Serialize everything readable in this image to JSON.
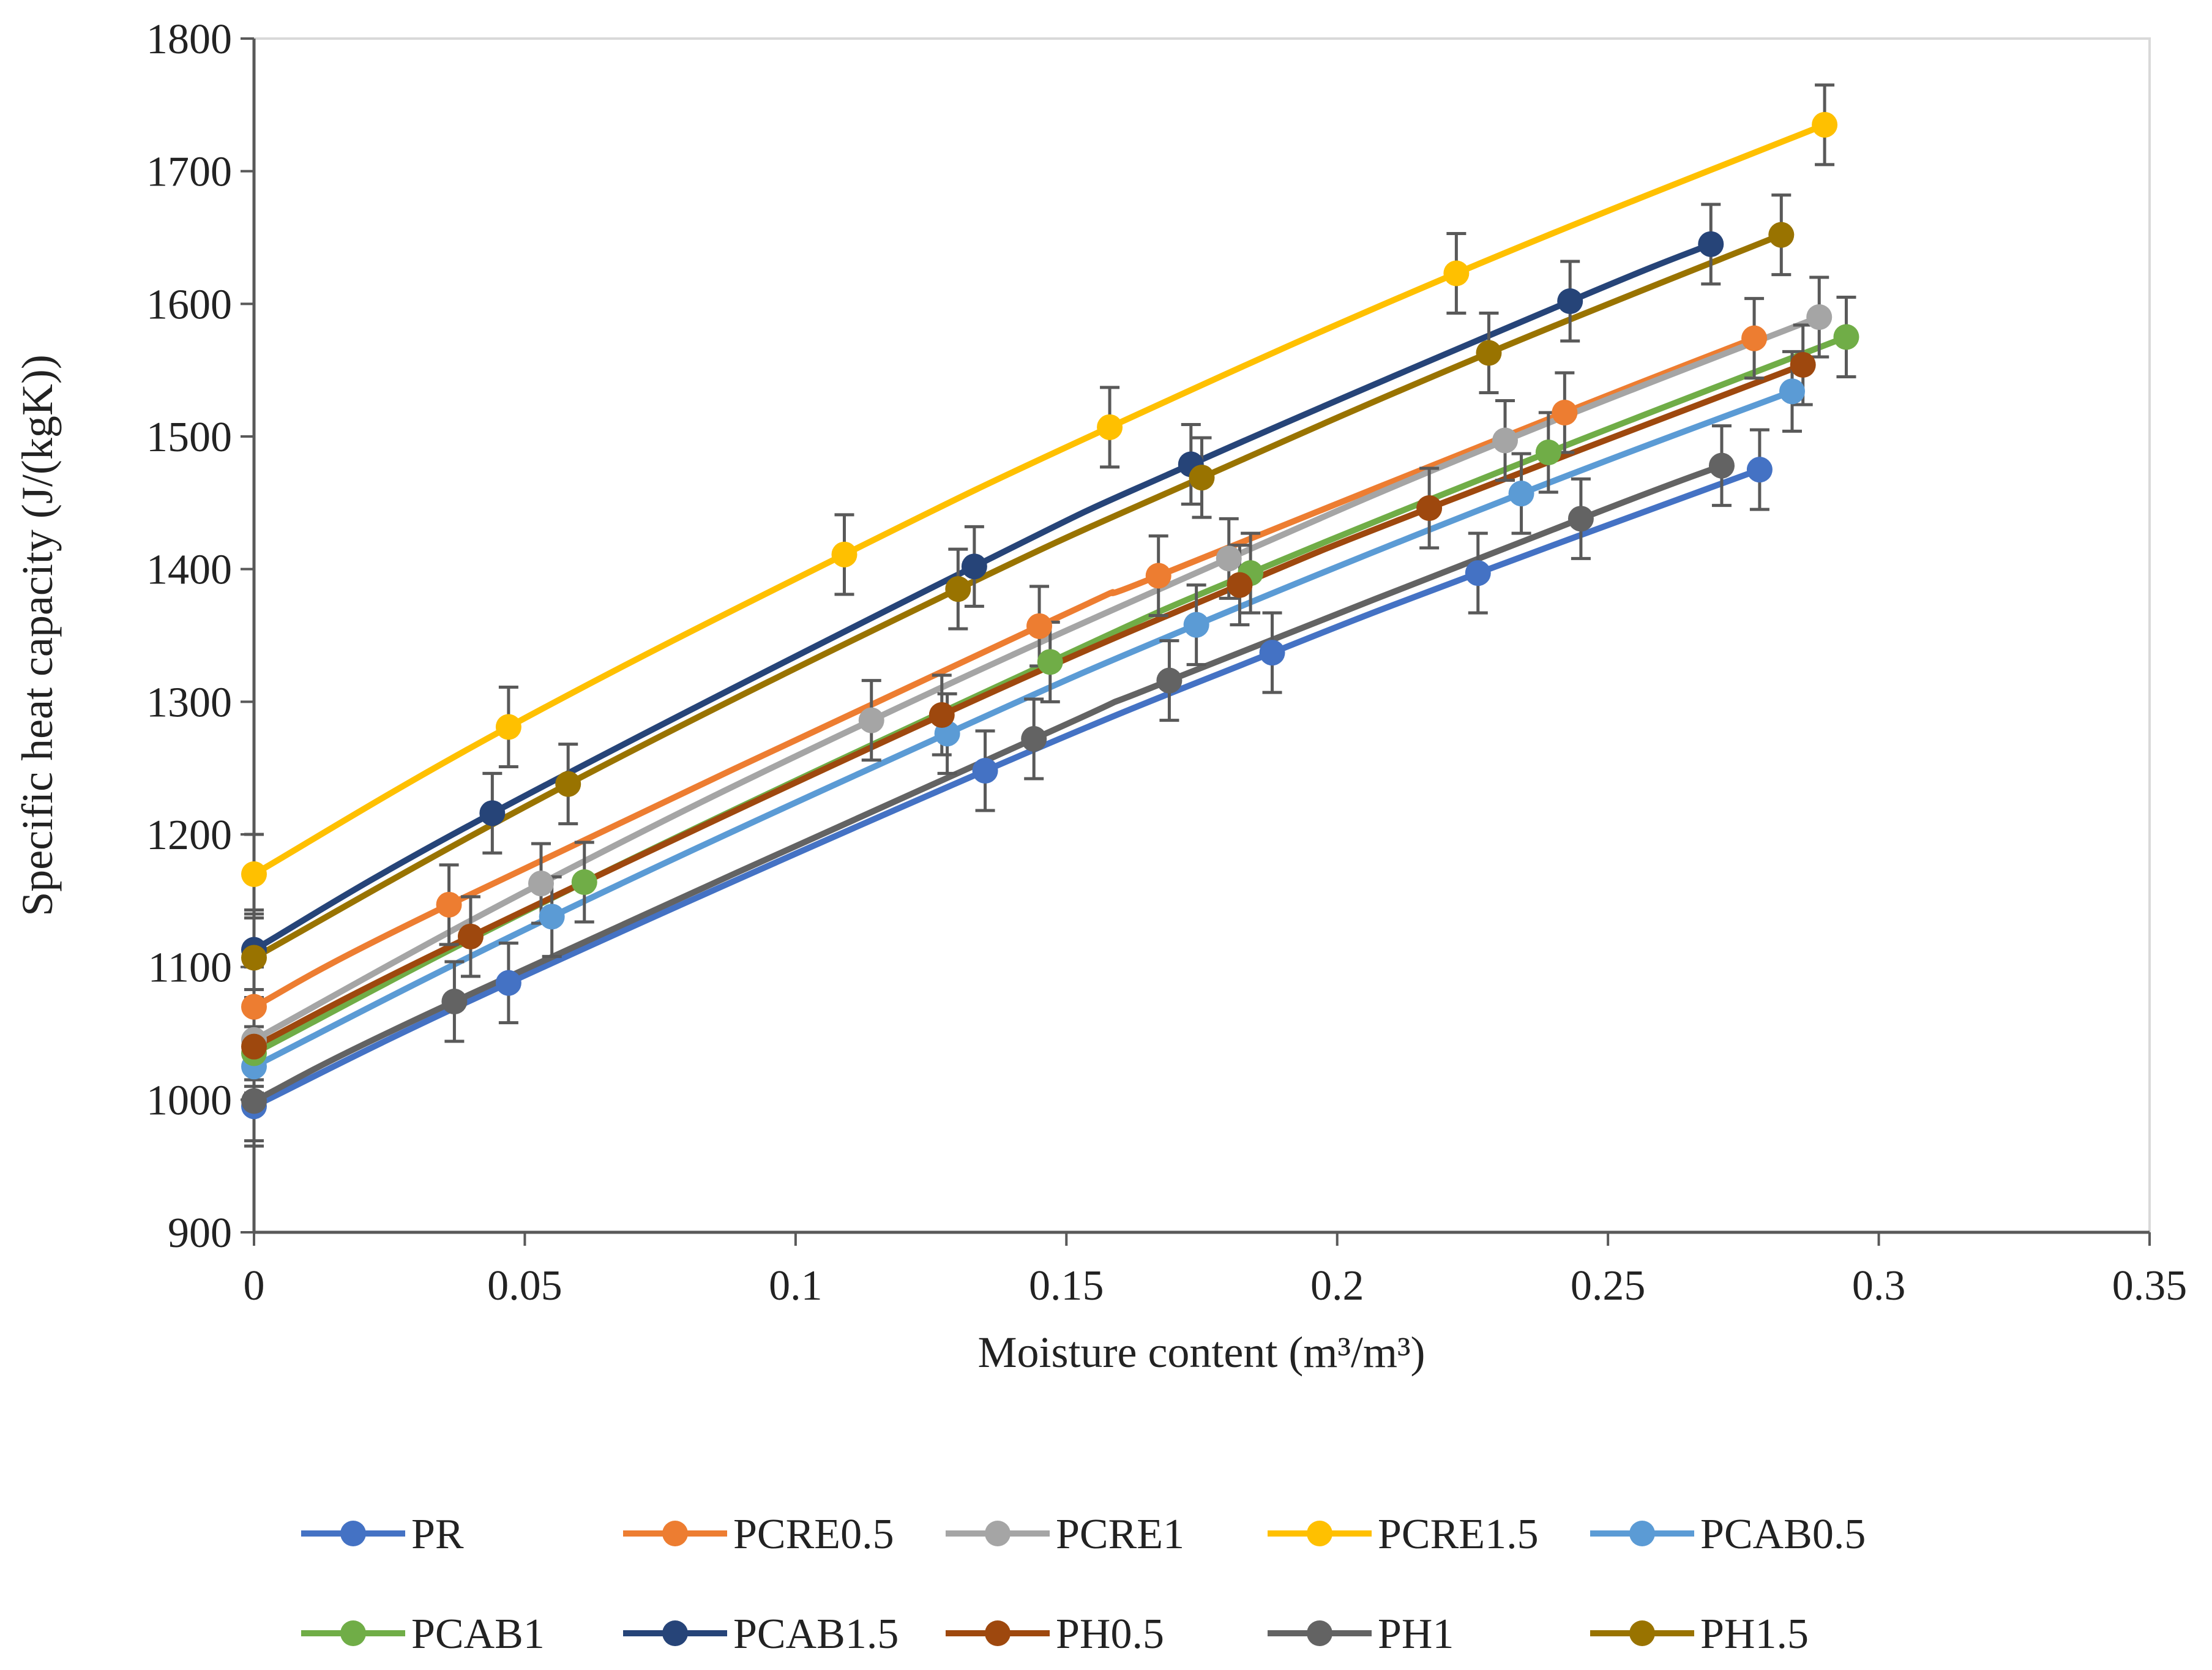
{
  "chart_data": {
    "type": "line",
    "title": "",
    "xlabel": "Moisture content (m³/m³)",
    "ylabel": "Specific heat capacity (J/(kgK))",
    "xlim": [
      0,
      0.35
    ],
    "ylim": [
      900,
      1800
    ],
    "xticks": [
      0,
      0.05,
      0.1,
      0.15,
      0.2,
      0.25,
      0.3,
      0.35
    ],
    "xtick_labels": [
      "0",
      "0.05",
      "0.1",
      "0.15",
      "0.2",
      "0.25",
      "0.3",
      "0.35"
    ],
    "yticks": [
      900,
      1000,
      1100,
      1200,
      1300,
      1400,
      1500,
      1600,
      1700,
      1800
    ],
    "ytick_labels": [
      "900",
      "1000",
      "1100",
      "1200",
      "1300",
      "1400",
      "1500",
      "1600",
      "1700",
      "1800"
    ],
    "grid": false,
    "legend_position": "bottom",
    "error_bar": 30,
    "series": [
      {
        "name": "PR",
        "color": "#4472C4",
        "x": [
          0,
          0.047,
          0.135,
          0.188,
          0.226,
          0.278
        ],
        "y": [
          995,
          1088,
          1248,
          1337,
          1397,
          1475
        ]
      },
      {
        "name": "PCRE0.5",
        "color": "#ED7D31",
        "x": [
          0,
          0.036,
          0.145,
          0.167,
          0.242,
          0.277
        ],
        "y": [
          1070,
          1147,
          1357,
          1395,
          1518,
          1574
        ]
      },
      {
        "name": "PCRE1",
        "color": "#A5A5A5",
        "x": [
          0,
          0.053,
          0.114,
          0.18,
          0.231,
          0.289
        ],
        "y": [
          1045,
          1163,
          1286,
          1408,
          1497,
          1590
        ]
      },
      {
        "name": "PCRE1.5",
        "color": "#FFC000",
        "x": [
          0,
          0.047,
          0.109,
          0.158,
          0.222,
          0.29
        ],
        "y": [
          1170,
          1281,
          1411,
          1507,
          1623,
          1735
        ]
      },
      {
        "name": "PCAB0.5",
        "color": "#5B9BD5",
        "x": [
          0,
          0.055,
          0.128,
          0.174,
          0.234,
          0.284
        ],
        "y": [
          1025,
          1138,
          1276,
          1358,
          1457,
          1534
        ]
      },
      {
        "name": "PCAB1",
        "color": "#70AD47",
        "x": [
          0,
          0.061,
          0.147,
          0.184,
          0.239,
          0.294
        ],
        "y": [
          1035,
          1164,
          1330,
          1397,
          1488,
          1575
        ]
      },
      {
        "name": "PCAB1.5",
        "color": "#264478",
        "x": [
          0,
          0.044,
          0.133,
          0.173,
          0.243,
          0.269
        ],
        "y": [
          1113,
          1216,
          1402,
          1479,
          1602,
          1645
        ]
      },
      {
        "name": "PH0.5",
        "color": "#9E480E",
        "x": [
          0,
          0.04,
          0.127,
          0.182,
          0.217,
          0.286
        ],
        "y": [
          1040,
          1123,
          1290,
          1388,
          1446,
          1554
        ]
      },
      {
        "name": "PH1",
        "color": "#636363",
        "x": [
          0,
          0.037,
          0.144,
          0.169,
          0.245,
          0.271
        ],
        "y": [
          999,
          1074,
          1272,
          1316,
          1438,
          1478
        ]
      },
      {
        "name": "PH1.5",
        "color": "#997300",
        "x": [
          0,
          0.058,
          0.13,
          0.175,
          0.228,
          0.282
        ],
        "y": [
          1107,
          1238,
          1385,
          1469,
          1563,
          1652
        ]
      }
    ]
  }
}
